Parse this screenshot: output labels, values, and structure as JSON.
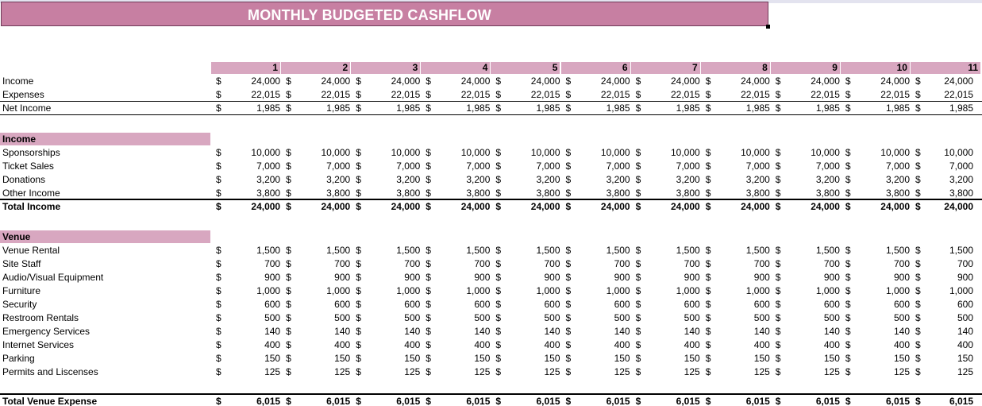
{
  "title": "MONTHLY BUDGETED CASHFLOW",
  "months": [
    "1",
    "2",
    "3",
    "4",
    "5",
    "6",
    "7",
    "8",
    "9",
    "10",
    "11"
  ],
  "currency": "$",
  "summary": [
    {
      "label": "Income",
      "value": "24,000",
      "bold": false
    },
    {
      "label": "Expenses",
      "value": "22,015",
      "bold": false
    },
    {
      "label": "Net Income",
      "value": "1,985",
      "bold": false
    }
  ],
  "income_section": {
    "header": "Income",
    "rows": [
      {
        "label": "Sponsorships",
        "value": "10,000"
      },
      {
        "label": "Ticket Sales",
        "value": "7,000"
      },
      {
        "label": "Donations",
        "value": "3,200"
      },
      {
        "label": "Other Income",
        "value": "3,800"
      }
    ],
    "total": {
      "label": "Total Income",
      "value": "24,000"
    }
  },
  "venue_section": {
    "header": "Venue",
    "rows": [
      {
        "label": "Venue Rental",
        "value": "1,500"
      },
      {
        "label": "Site Staff",
        "value": "700"
      },
      {
        "label": "Audio/Visual Equipment",
        "value": "900"
      },
      {
        "label": "Furniture",
        "value": "1,000"
      },
      {
        "label": "Security",
        "value": "600"
      },
      {
        "label": "Restroom Rentals",
        "value": "500"
      },
      {
        "label": "Emergency Services",
        "value": "140"
      },
      {
        "label": "Internet Services",
        "value": "400"
      },
      {
        "label": "Parking",
        "value": "150"
      },
      {
        "label": "Permits and Liscenses",
        "value": "125"
      }
    ],
    "total": {
      "label": "Total Venue Expense",
      "value": "6,015"
    }
  },
  "colors": {
    "banner": "#c77fa2",
    "header_band": "#d8a7c0"
  }
}
